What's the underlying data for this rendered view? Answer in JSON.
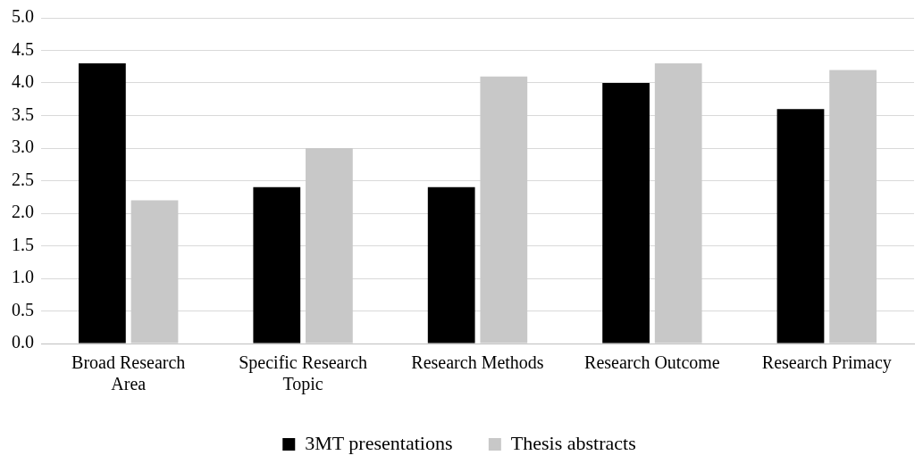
{
  "chart_data": {
    "type": "bar",
    "categories": [
      "Broad Research Area",
      "Specific Research Topic",
      "Research Methods",
      "Research Outcome",
      "Research Primacy"
    ],
    "series": [
      {
        "name": "3MT presentations",
        "color": "#000000",
        "values": [
          4.3,
          2.4,
          2.4,
          4.0,
          3.6
        ]
      },
      {
        "name": "Thesis abstracts",
        "color": "#c8c8c8",
        "values": [
          2.2,
          3.0,
          4.1,
          4.3,
          4.2
        ]
      }
    ],
    "ylim": [
      0,
      5
    ],
    "yticks": [
      {
        "value": 0,
        "label": "0.0"
      },
      {
        "value": 0.5,
        "label": "0.5"
      },
      {
        "value": 1,
        "label": "1.0"
      },
      {
        "value": 1.5,
        "label": "1.5"
      },
      {
        "value": 2,
        "label": "2.0"
      },
      {
        "value": 2.5,
        "label": "2.5"
      },
      {
        "value": 3,
        "label": "3.0"
      },
      {
        "value": 3.5,
        "label": "3.5"
      },
      {
        "value": 4,
        "label": "4.0"
      },
      {
        "value": 4.5,
        "label": "4.5"
      },
      {
        "value": 5,
        "label": "5.0"
      }
    ],
    "grid": "y",
    "legend": "bottom"
  }
}
